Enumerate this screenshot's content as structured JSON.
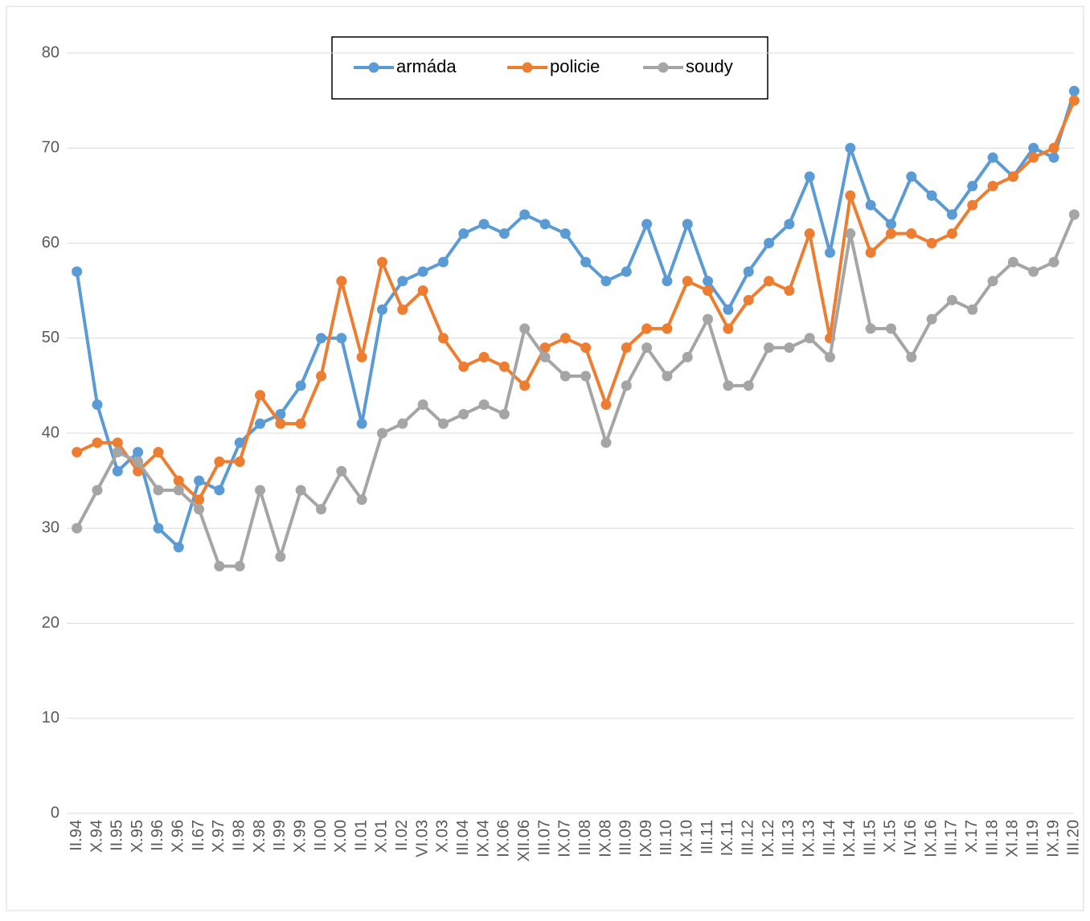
{
  "chart_data": {
    "type": "line",
    "categories": [
      "II.94",
      "X.94",
      "II.95",
      "X.95",
      "II.96",
      "X.96",
      "II.67",
      "X.97",
      "II.98",
      "X.98",
      "II.99",
      "X.99",
      "II.00",
      "X.00",
      "II.01",
      "X.01",
      "II.02",
      "VI.03",
      "X.03",
      "III.04",
      "IX.04",
      "IX.06",
      "XII.06",
      "III.07",
      "IX.07",
      "III.08",
      "IX.08",
      "III.09",
      "IX.09",
      "III.10",
      "IX.10",
      "III.11",
      "IX.11",
      "III.12",
      "IX.12",
      "III.13",
      "IX.13",
      "III.14",
      "IX.14",
      "III.15",
      "X.15",
      "IV.16",
      "IX.16",
      "III.17",
      "X.17",
      "III.18",
      "XI.18",
      "III.19",
      "IX.19",
      "III.20"
    ],
    "series": [
      {
        "name": "armáda",
        "color": "#5b9bd5",
        "values": [
          57,
          43,
          36,
          38,
          30,
          28,
          35,
          34,
          39,
          41,
          42,
          45,
          50,
          50,
          41,
          53,
          56,
          57,
          58,
          61,
          62,
          61,
          63,
          62,
          61,
          58,
          56,
          57,
          62,
          56,
          62,
          56,
          53,
          57,
          60,
          62,
          67,
          59,
          70,
          64,
          62,
          67,
          65,
          63,
          66,
          69,
          67,
          70,
          69,
          76
        ]
      },
      {
        "name": "policie",
        "color": "#ed7d31",
        "values": [
          38,
          39,
          39,
          36,
          38,
          35,
          33,
          37,
          37,
          44,
          41,
          41,
          46,
          56,
          48,
          58,
          53,
          55,
          50,
          47,
          48,
          47,
          45,
          49,
          50,
          49,
          43,
          49,
          51,
          51,
          56,
          55,
          51,
          54,
          56,
          55,
          61,
          50,
          65,
          59,
          61,
          61,
          60,
          61,
          64,
          66,
          67,
          69,
          70,
          75
        ]
      },
      {
        "name": "soudy",
        "color": "#a5a5a5",
        "values": [
          30,
          34,
          38,
          37,
          34,
          34,
          32,
          26,
          26,
          34,
          27,
          34,
          32,
          36,
          33,
          40,
          41,
          43,
          41,
          42,
          43,
          42,
          51,
          48,
          46,
          46,
          39,
          45,
          49,
          46,
          48,
          52,
          45,
          45,
          49,
          49,
          50,
          48,
          61,
          51,
          51,
          48,
          52,
          54,
          53,
          56,
          58,
          57,
          58,
          63
        ]
      }
    ],
    "ylim": [
      0,
      80
    ],
    "yticks": [
      0,
      10,
      20,
      30,
      40,
      50,
      60,
      70,
      80
    ],
    "grid": true,
    "legend": "top"
  }
}
